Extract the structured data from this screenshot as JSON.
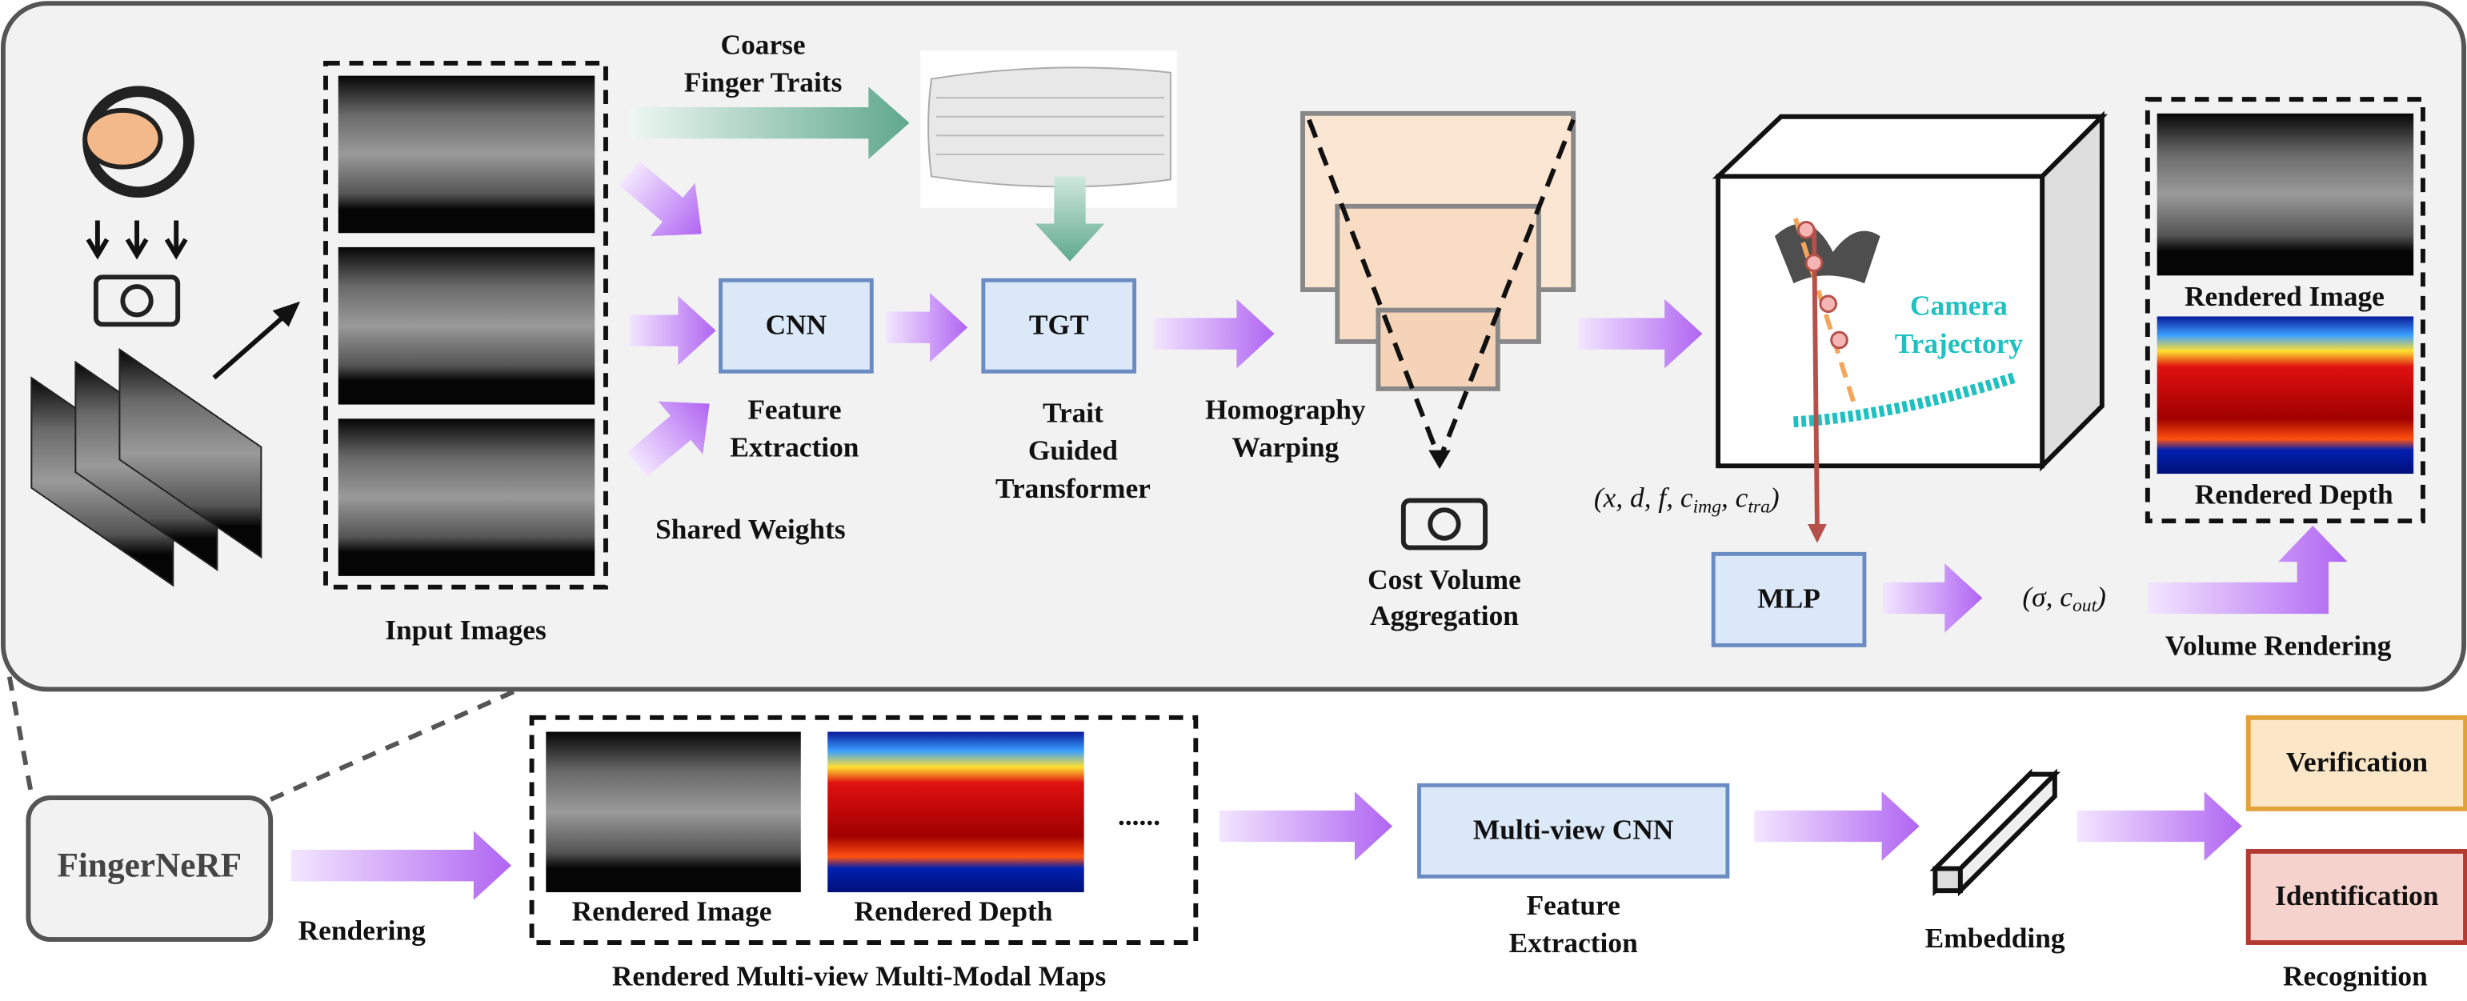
{
  "labels": {
    "coarse_finger_traits": [
      "Coarse",
      "Finger Traits"
    ],
    "cnn": "CNN",
    "feature_extraction_top": [
      "Feature",
      "Extraction"
    ],
    "shared_weights": "Shared Weights",
    "input_images": "Input Images",
    "tgt": "TGT",
    "trait_guided_transformer": [
      "Trait",
      "Guided",
      "Transformer"
    ],
    "homography_warping": [
      "Homography",
      "Warping"
    ],
    "cost_volume_aggregation": [
      "Cost Volume",
      "Aggregation"
    ],
    "camera_trajectory": [
      "Camera",
      "Trajectory"
    ],
    "rendered_image_top": "Rendered Image",
    "rendered_depth_top": "Rendered Depth",
    "mlp_input": [
      "(x, d, f, c",
      "img",
      ", c",
      "tra",
      ")"
    ],
    "mlp": "MLP",
    "mlp_output": [
      "(σ, c",
      "out",
      ")"
    ],
    "volume_rendering": "Volume Rendering",
    "fingernerf": "FingerNeRF",
    "rendering": "Rendering",
    "rendered_image_bottom": "Rendered Image",
    "rendered_depth_bottom": "Rendered Depth",
    "ellipsis": "......",
    "rendered_maps": "Rendered Multi-view Multi-Modal Maps",
    "multiview_cnn": "Multi-view CNN",
    "feature_extraction_bottom": [
      "Feature",
      "Extraction"
    ],
    "embedding": "Embedding",
    "verification": "Verification",
    "identification": "Identification",
    "recognition": "Recognition"
  }
}
